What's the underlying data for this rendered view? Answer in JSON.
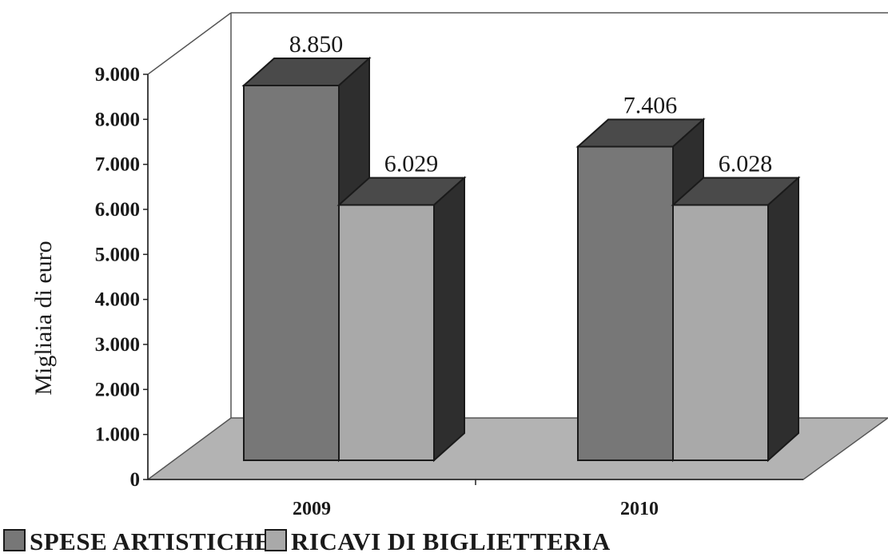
{
  "chart_data": {
    "type": "bar",
    "categories": [
      "2009",
      "2010"
    ],
    "series": [
      {
        "name": "SPESE ARTISTICHE",
        "values": [
          8850,
          7406
        ],
        "labels": [
          "8.850",
          "7.406"
        ]
      },
      {
        "name": "RICAVI DI BIGLIETTERIA",
        "values": [
          6029,
          6028
        ],
        "labels": [
          "6.029",
          "6.028"
        ]
      }
    ],
    "ylabel": "Migliaia di euro",
    "xlabel": "",
    "ylim": [
      0,
      9000
    ],
    "yticks": [
      "0",
      "1.000",
      "2.000",
      "3.000",
      "4.000",
      "5.000",
      "6.000",
      "7.000",
      "8.000",
      "9.000"
    ],
    "grid": false,
    "legend": "bottom",
    "style": "3d-column"
  },
  "colors": {
    "series_fill": [
      "#777777",
      "#a9a9a9"
    ],
    "floor": "#b3b3b3",
    "outline": "#1a1a1a"
  }
}
